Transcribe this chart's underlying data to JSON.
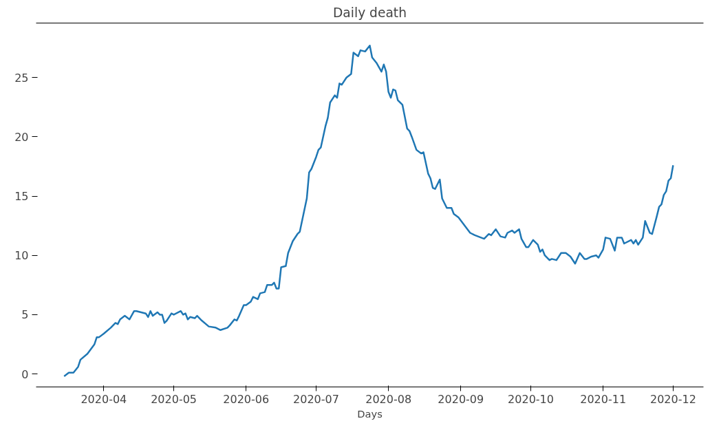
{
  "chart_data": {
    "type": "line",
    "title": "Daily death",
    "xlabel": "Days",
    "x": [
      "2020-03-15",
      "2020-03-17",
      "2020-03-19",
      "2020-03-21",
      "2020-03-22",
      "2020-03-25",
      "2020-03-28",
      "2020-03-29",
      "2020-03-30",
      "2020-04-01",
      "2020-04-04",
      "2020-04-06",
      "2020-04-07",
      "2020-04-08",
      "2020-04-10",
      "2020-04-12",
      "2020-04-14",
      "2020-04-15",
      "2020-04-17",
      "2020-04-19",
      "2020-04-20",
      "2020-04-21",
      "2020-04-22",
      "2020-04-24",
      "2020-04-25",
      "2020-04-26",
      "2020-04-27",
      "2020-04-28",
      "2020-04-30",
      "2020-05-01",
      "2020-05-04",
      "2020-05-05",
      "2020-05-06",
      "2020-05-07",
      "2020-05-08",
      "2020-05-10",
      "2020-05-11",
      "2020-05-13",
      "2020-05-16",
      "2020-05-19",
      "2020-05-21",
      "2020-05-24",
      "2020-05-25",
      "2020-05-27",
      "2020-05-28",
      "2020-05-29",
      "2020-05-31",
      "2020-06-01",
      "2020-06-03",
      "2020-06-04",
      "2020-06-06",
      "2020-06-07",
      "2020-06-09",
      "2020-06-10",
      "2020-06-12",
      "2020-06-13",
      "2020-06-14",
      "2020-06-15",
      "2020-06-16",
      "2020-06-18",
      "2020-06-19",
      "2020-06-21",
      "2020-06-23",
      "2020-06-24",
      "2020-06-27",
      "2020-06-28",
      "2020-06-29",
      "2020-07-01",
      "2020-07-02",
      "2020-07-03",
      "2020-07-05",
      "2020-07-06",
      "2020-07-07",
      "2020-07-09",
      "2020-07-10",
      "2020-07-11",
      "2020-07-12",
      "2020-07-14",
      "2020-07-16",
      "2020-07-17",
      "2020-07-19",
      "2020-07-20",
      "2020-07-22",
      "2020-07-24",
      "2020-07-25",
      "2020-07-27",
      "2020-07-29",
      "2020-07-30",
      "2020-07-31",
      "2020-08-01",
      "2020-08-02",
      "2020-08-03",
      "2020-08-04",
      "2020-08-05",
      "2020-08-07",
      "2020-08-09",
      "2020-08-10",
      "2020-08-11",
      "2020-08-13",
      "2020-08-15",
      "2020-08-16",
      "2020-08-18",
      "2020-08-19",
      "2020-08-20",
      "2020-08-21",
      "2020-08-23",
      "2020-08-24",
      "2020-08-26",
      "2020-08-28",
      "2020-08-29",
      "2020-08-31",
      "2020-09-05",
      "2020-09-07",
      "2020-09-11",
      "2020-09-13",
      "2020-09-14",
      "2020-09-16",
      "2020-09-18",
      "2020-09-20",
      "2020-09-21",
      "2020-09-23",
      "2020-09-24",
      "2020-09-26",
      "2020-09-27",
      "2020-09-29",
      "2020-09-30",
      "2020-10-02",
      "2020-10-04",
      "2020-10-05",
      "2020-10-06",
      "2020-10-07",
      "2020-10-09",
      "2020-10-10",
      "2020-10-12",
      "2020-10-14",
      "2020-10-16",
      "2020-10-18",
      "2020-10-20",
      "2020-10-22",
      "2020-10-24",
      "2020-10-25",
      "2020-10-27",
      "2020-10-29",
      "2020-10-30",
      "2020-11-01",
      "2020-11-02",
      "2020-11-04",
      "2020-11-06",
      "2020-11-07",
      "2020-11-09",
      "2020-11-10",
      "2020-11-13",
      "2020-11-14",
      "2020-11-15",
      "2020-11-16",
      "2020-11-18",
      "2020-11-19",
      "2020-11-21",
      "2020-11-22",
      "2020-11-24",
      "2020-11-25",
      "2020-11-26",
      "2020-11-27",
      "2020-11-28",
      "2020-11-29",
      "2020-11-30",
      "2020-12-01"
    ],
    "series": [
      {
        "color": "#1f77b4",
        "values": [
          -0.2,
          0.1,
          0.1,
          0.6,
          1.2,
          1.7,
          2.5,
          3.1,
          3.1,
          3.4,
          3.9,
          4.3,
          4.2,
          4.6,
          4.9,
          4.6,
          5.3,
          5.3,
          5.2,
          5.1,
          4.8,
          5.3,
          4.9,
          5.2,
          5.0,
          5.0,
          4.3,
          4.5,
          5.1,
          5.0,
          5.3,
          5.0,
          5.1,
          4.6,
          4.8,
          4.7,
          4.9,
          4.5,
          4.0,
          3.9,
          3.7,
          3.9,
          4.1,
          4.6,
          4.5,
          4.9,
          5.8,
          5.8,
          6.1,
          6.5,
          6.3,
          6.8,
          6.9,
          7.5,
          7.5,
          7.7,
          7.2,
          7.2,
          9.0,
          9.1,
          10.2,
          11.2,
          11.8,
          12.0,
          14.8,
          17.0,
          17.3,
          18.3,
          18.9,
          19.1,
          20.9,
          21.6,
          22.9,
          23.5,
          23.3,
          24.5,
          24.4,
          25.0,
          25.3,
          27.1,
          26.8,
          27.3,
          27.2,
          27.7,
          26.7,
          26.2,
          25.5,
          26.1,
          25.5,
          23.8,
          23.3,
          24.0,
          23.9,
          23.1,
          22.7,
          20.7,
          20.5,
          20.0,
          18.9,
          18.6,
          18.7,
          16.9,
          16.5,
          15.7,
          15.6,
          16.4,
          14.8,
          14.0,
          14.0,
          13.5,
          13.2,
          11.9,
          11.7,
          11.4,
          11.8,
          11.7,
          12.2,
          11.6,
          11.5,
          11.9,
          12.1,
          11.9,
          12.2,
          11.4,
          10.7,
          10.7,
          11.3,
          10.9,
          10.3,
          10.5,
          10.0,
          9.6,
          9.7,
          9.6,
          10.2,
          10.2,
          9.9,
          9.3,
          10.2,
          9.7,
          9.7,
          9.9,
          10.0,
          9.8,
          10.5,
          11.5,
          11.4,
          10.4,
          11.5,
          11.5,
          11.0,
          11.3,
          11.0,
          11.3,
          10.9,
          11.5,
          12.9,
          11.9,
          11.8,
          13.3,
          14.1,
          14.3,
          15.1,
          15.4,
          16.3,
          16.5,
          17.6
        ]
      }
    ],
    "xlim": [
      "2020-03-03",
      "2020-12-14"
    ],
    "ylim": [
      -1.1,
      29.6
    ],
    "xticks": [
      "2020-04",
      "2020-05",
      "2020-06",
      "2020-07",
      "2020-08",
      "2020-09",
      "2020-10",
      "2020-11",
      "2020-12"
    ],
    "yticks": [
      0,
      5,
      10,
      15,
      20,
      25
    ],
    "grid": false,
    "line_style": "solid",
    "marker": "none"
  }
}
